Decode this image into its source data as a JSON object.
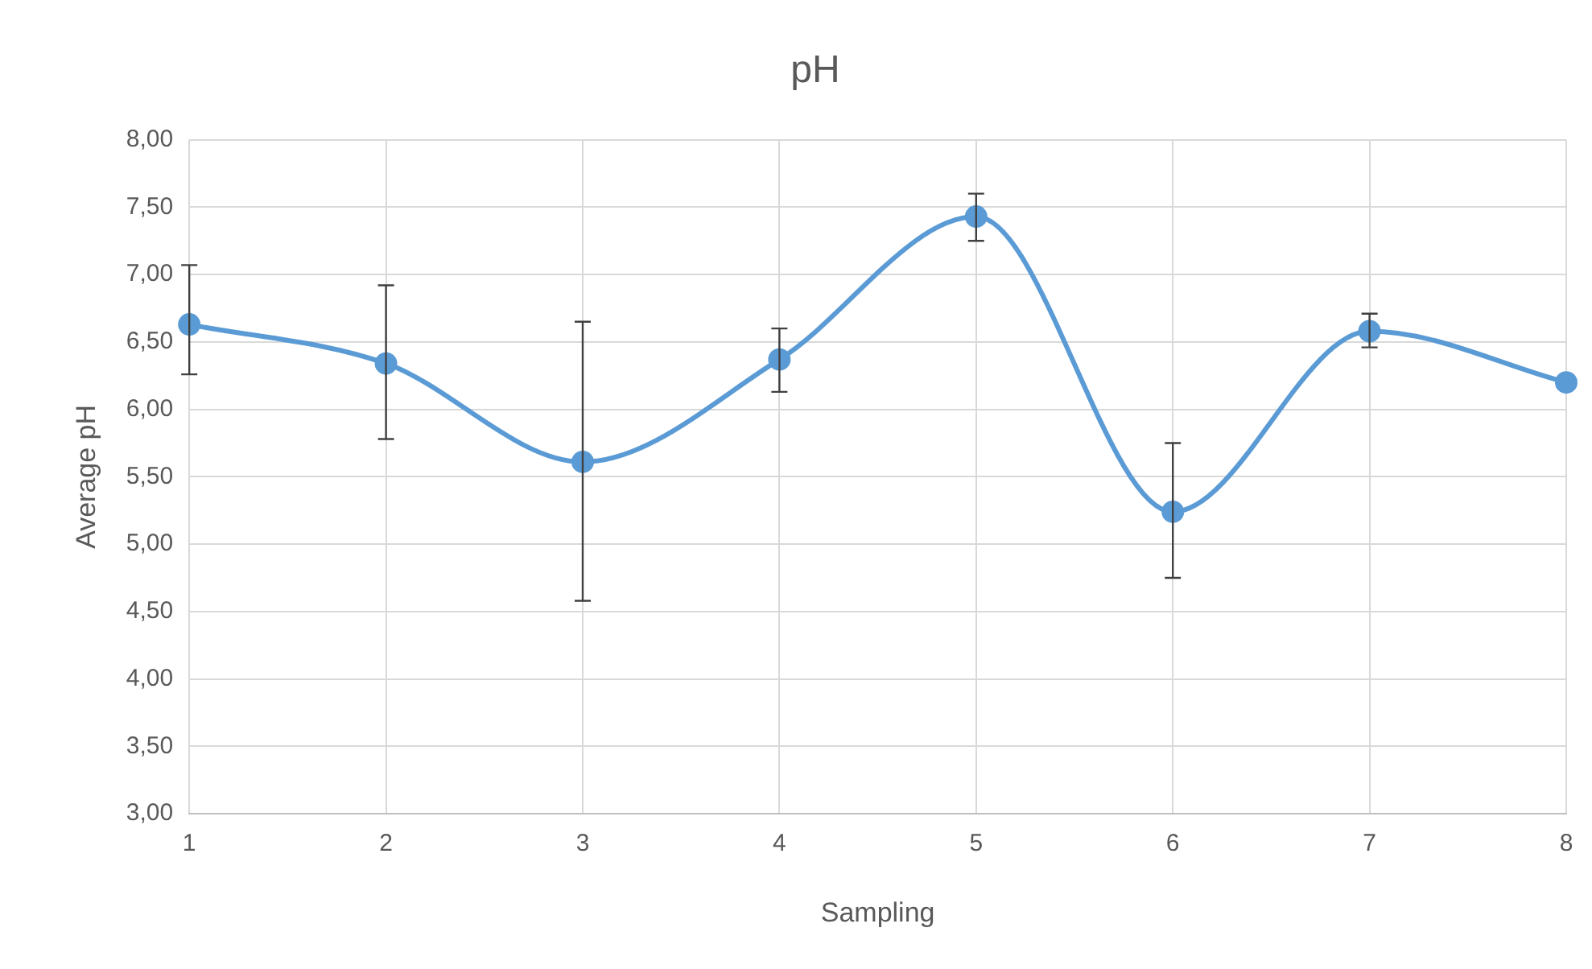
{
  "chart_data": {
    "type": "line",
    "title": "pH",
    "xlabel": "Sampling",
    "ylabel": "Average pH",
    "categories": [
      "1",
      "2",
      "3",
      "4",
      "5",
      "6",
      "7",
      "8"
    ],
    "values": [
      6.63,
      6.34,
      5.61,
      6.37,
      7.43,
      5.24,
      6.58,
      6.2
    ],
    "errors": [
      [
        6.26,
        7.07
      ],
      [
        5.78,
        6.92
      ],
      [
        4.58,
        6.65
      ],
      [
        6.13,
        6.6
      ],
      [
        7.25,
        7.6
      ],
      [
        4.75,
        5.75
      ],
      [
        6.46,
        6.71
      ],
      null
    ],
    "color": "#5b9bd5",
    "marker": "circle",
    "line_style": "solid",
    "ylim": [
      3,
      8
    ],
    "yticks": [
      {
        "value": 3,
        "label": "3,00"
      },
      {
        "value": 3.5,
        "label": "3,50"
      },
      {
        "value": 4,
        "label": "4,00"
      },
      {
        "value": 4.5,
        "label": "4,50"
      },
      {
        "value": 5,
        "label": "5,00"
      },
      {
        "value": 5.5,
        "label": "5,50"
      },
      {
        "value": 6,
        "label": "6,00"
      },
      {
        "value": 6.5,
        "label": "6,50"
      },
      {
        "value": 7,
        "label": "7,00"
      },
      {
        "value": 7.5,
        "label": "7,50"
      },
      {
        "value": 8,
        "label": "8,00"
      }
    ],
    "grid": true
  }
}
